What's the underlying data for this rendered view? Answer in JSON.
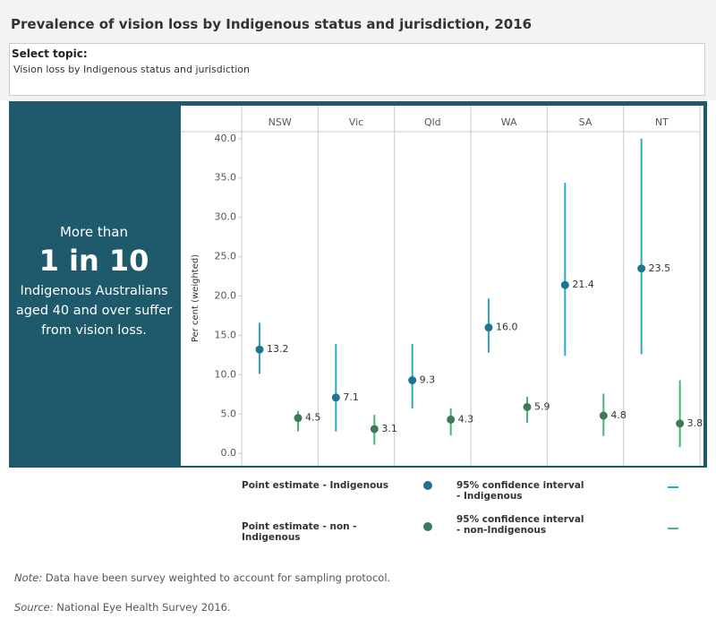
{
  "header": {
    "title": "Prevalence of  vision loss by Indigenous status and jurisdiction, 2016"
  },
  "filter": {
    "label": "Select topic:",
    "value": "Vision loss by Indigenous status and jurisdiction"
  },
  "panel": {
    "lead": "More than",
    "highlight": "1 in 10",
    "text": "Indigenous Australians aged 40 and over suffer from vision loss."
  },
  "chart_data": {
    "type": "dot-interval",
    "y_label": "Per cent (weighted)",
    "categories": [
      "NSW",
      "Vic",
      "Qld",
      "WA",
      "SA",
      "NT"
    ],
    "ylim": [
      -1,
      41
    ],
    "yticks": [
      {
        "value": 0,
        "label": "0.0"
      },
      {
        "value": 5,
        "label": "5.0"
      },
      {
        "value": 10,
        "label": "10.0"
      },
      {
        "value": 15,
        "label": "15.0"
      },
      {
        "value": 20,
        "label": "20.0"
      },
      {
        "value": 25,
        "label": "25.0"
      },
      {
        "value": 30,
        "label": "30.0"
      },
      {
        "value": 35,
        "label": "35.0"
      },
      {
        "value": 40,
        "label": "40.0"
      }
    ],
    "series": [
      {
        "name": "Point estimate - Indigenous",
        "ci_name": "95% confidence interval - Indigenous",
        "color": "#1d7590",
        "ci_color": "#2fa6cf",
        "values": [
          13.2,
          7.1,
          9.3,
          16.0,
          21.4,
          23.5
        ],
        "value_labels": [
          "13.2",
          "7.1",
          "9.3",
          "16.0",
          "21.4",
          "23.5"
        ],
        "lower": [
          10.1,
          2.8,
          5.7,
          12.8,
          12.4,
          12.6
        ],
        "upper": [
          16.6,
          13.9,
          13.9,
          19.7,
          34.4,
          40.0
        ]
      },
      {
        "name": "Point estimate - non - Indigenous",
        "ci_name": "95% confidence interval - non-Indigenous",
        "color": "#3b7a5a",
        "ci_color": "#45b878",
        "values": [
          4.5,
          3.1,
          4.3,
          5.9,
          4.8,
          3.8
        ],
        "value_labels": [
          "4.5",
          "3.1",
          "4.3",
          "5.9",
          "4.8",
          "3.8"
        ],
        "lower": [
          2.8,
          1.1,
          2.3,
          3.9,
          2.2,
          0.8
        ],
        "upper": [
          5.4,
          4.9,
          5.7,
          7.2,
          7.6,
          9.3
        ]
      }
    ]
  },
  "footer": {
    "note_label": "Note:",
    "note": "Data have been survey weighted to account for sampling protocol.",
    "source_label": "Source:",
    "source": "National Eye Health Survey 2016."
  }
}
